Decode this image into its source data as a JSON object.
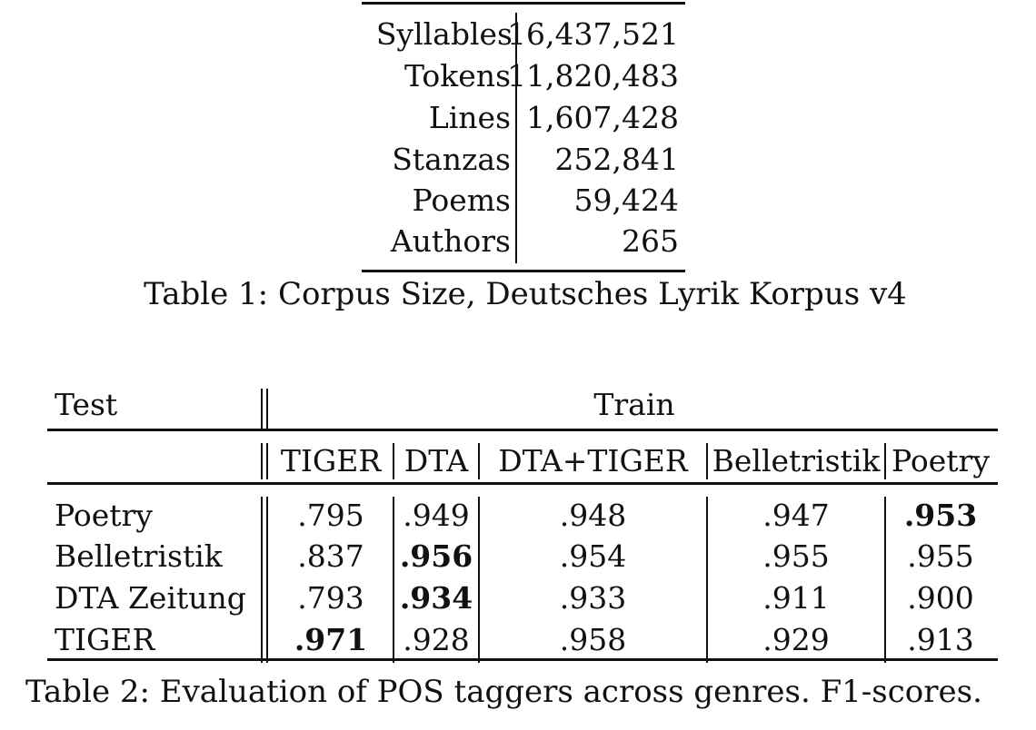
{
  "table1": {
    "rows": [
      {
        "label": "Syllables",
        "value": "16,437,521"
      },
      {
        "label": "Tokens",
        "value": "11,820,483"
      },
      {
        "label": "Lines",
        "value": "1,607,428"
      },
      {
        "label": "Stanzas",
        "value": "252,841"
      },
      {
        "label": "Poems",
        "value": "59,424"
      },
      {
        "label": "Authors",
        "value": "265"
      }
    ],
    "caption": "Table 1: Corpus Size, Deutsches Lyrik Korpus v4"
  },
  "table2": {
    "test_header": "Test",
    "train_header": "Train",
    "columns": [
      "TIGER",
      "DTA",
      "DTA+TIGER",
      "Belletristik",
      "Poetry"
    ],
    "rows": [
      {
        "label": "Poetry",
        "values": [
          ".795",
          ".949",
          ".948",
          ".947",
          ".953"
        ],
        "bold_col": 4
      },
      {
        "label": "Belletristik",
        "values": [
          ".837",
          ".956",
          ".954",
          ".955",
          ".955"
        ],
        "bold_col": 1
      },
      {
        "label": "DTA Zeitung",
        "values": [
          ".793",
          ".934",
          ".933",
          ".911",
          ".900"
        ],
        "bold_col": 1
      },
      {
        "label": "TIGER",
        "values": [
          ".971",
          ".928",
          ".958",
          ".929",
          ".913"
        ],
        "bold_col": 0
      }
    ],
    "caption": "Table 2: Evaluation of POS taggers across genres. F1-scores."
  }
}
